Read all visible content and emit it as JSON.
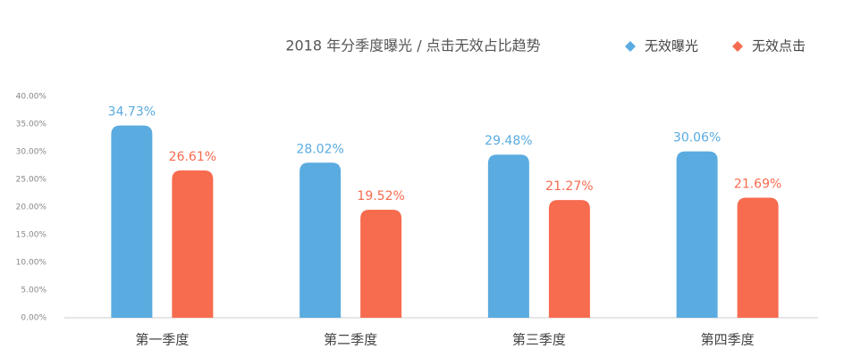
{
  "chart_data": {
    "type": "bar",
    "title": "2018 年分季度曝光 / 点击无效占比趋势",
    "categories": [
      "第一季度",
      "第二季度",
      "第三季度",
      "第四季度"
    ],
    "series": [
      {
        "name": "无效曝光",
        "color": "#5aabe0",
        "values": [
          34.73,
          28.02,
          29.48,
          30.06
        ],
        "value_labels": [
          "34.73%",
          "28.02%",
          "29.48%",
          "30.06%"
        ]
      },
      {
        "name": "无效点击",
        "color": "#f76b4f",
        "values": [
          26.61,
          19.52,
          21.27,
          21.69
        ],
        "value_labels": [
          "26.61%",
          "19.52%",
          "21.27%",
          "21.69%"
        ]
      }
    ],
    "ylim": [
      0,
      40
    ],
    "yticks": [
      {
        "value": 0,
        "label": "0.00%"
      },
      {
        "value": 5,
        "label": "5.00%"
      },
      {
        "value": 10,
        "label": "10.00%"
      },
      {
        "value": 15,
        "label": "15.00%"
      },
      {
        "value": 20,
        "label": "20.00%"
      },
      {
        "value": 25,
        "label": "25.00%"
      },
      {
        "value": 30,
        "label": "30.00%"
      },
      {
        "value": 35,
        "label": "35.00%"
      },
      {
        "value": 40,
        "label": "40.00%"
      }
    ],
    "grid": false,
    "legend": "top-right"
  }
}
